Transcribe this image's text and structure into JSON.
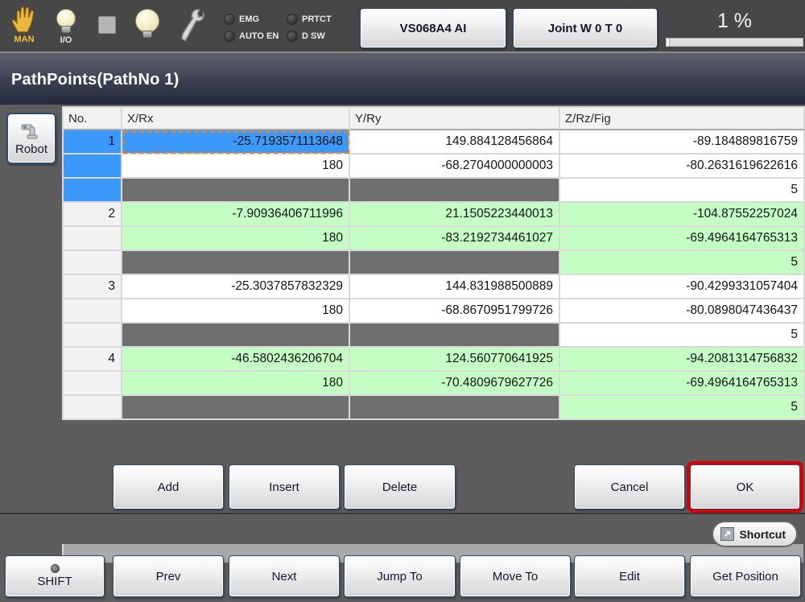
{
  "theme": {
    "content_bg": "#5d5d5d",
    "selection_blue": "#3b99fc",
    "row_green": "#c4fec4",
    "disabled_gray": "#6f6f6f",
    "ok_highlight_red": "#dd0000",
    "button_border_navy": "#2c4a73"
  },
  "top_bar": {
    "tools": [
      {
        "name": "manual-mode",
        "label": "MAN",
        "icon": "hand-icon"
      },
      {
        "name": "io-monitor",
        "label": "I/O",
        "icon": "bulb-icon"
      },
      {
        "name": "stop",
        "label": "",
        "icon": "square-icon"
      },
      {
        "name": "lamp",
        "label": "",
        "icon": "bulb-icon"
      },
      {
        "name": "maintenance",
        "label": "",
        "icon": "wrench-icon"
      }
    ],
    "indicators": [
      "EMG",
      "PRTCT",
      "AUTO EN",
      "D SW"
    ],
    "robot_model_button": "VS068A4 AI",
    "mode_button": "Joint  W 0 T 0",
    "speed": {
      "label": "1 %",
      "percent": 2
    }
  },
  "title_bar": {
    "title": "PathPoints(PathNo 1)"
  },
  "sidebar": {
    "robot_button": "Robot"
  },
  "table": {
    "columns": [
      "No.",
      "X/Rx",
      "Y/Ry",
      "Z/Rz/Fig"
    ],
    "groups": [
      {
        "no": "1",
        "selected": true,
        "rows": [
          [
            "-25.7193571113648",
            "149.884128456864",
            "-89.184889816759"
          ],
          [
            "180",
            "-68.2704000000003",
            "-80.2631619622616"
          ],
          [
            "",
            "",
            "5"
          ]
        ]
      },
      {
        "no": "2",
        "selected": false,
        "rows": [
          [
            "-7.90936406711996",
            "21.1505223440013",
            "-104.87552257024"
          ],
          [
            "180",
            "-83.2192734461027",
            "-69.4964164765313"
          ],
          [
            "",
            "",
            "5"
          ]
        ]
      },
      {
        "no": "3",
        "selected": false,
        "rows": [
          [
            "-25.3037857832329",
            "144.831988500889",
            "-90.4299331057404"
          ],
          [
            "180",
            "-68.8670951799726",
            "-80.0898047436437"
          ],
          [
            "",
            "",
            "5"
          ]
        ]
      },
      {
        "no": "4",
        "selected": false,
        "rows": [
          [
            "-46.5802436206704",
            "124.560770641925",
            "-94.2081314756832"
          ],
          [
            "180",
            "-70.4809679627726",
            "-69.4964164765313"
          ],
          [
            "",
            "",
            "5"
          ]
        ]
      }
    ]
  },
  "dialog_buttons": {
    "add": "Add",
    "insert": "Insert",
    "delete": "Delete",
    "cancel": "Cancel",
    "ok": "OK"
  },
  "shortcut": {
    "label": "Shortcut"
  },
  "bottom_bar": {
    "buttons": [
      "SHIFT",
      "Prev",
      "Next",
      "Jump To",
      "Move To",
      "Edit",
      "Get Position"
    ]
  }
}
